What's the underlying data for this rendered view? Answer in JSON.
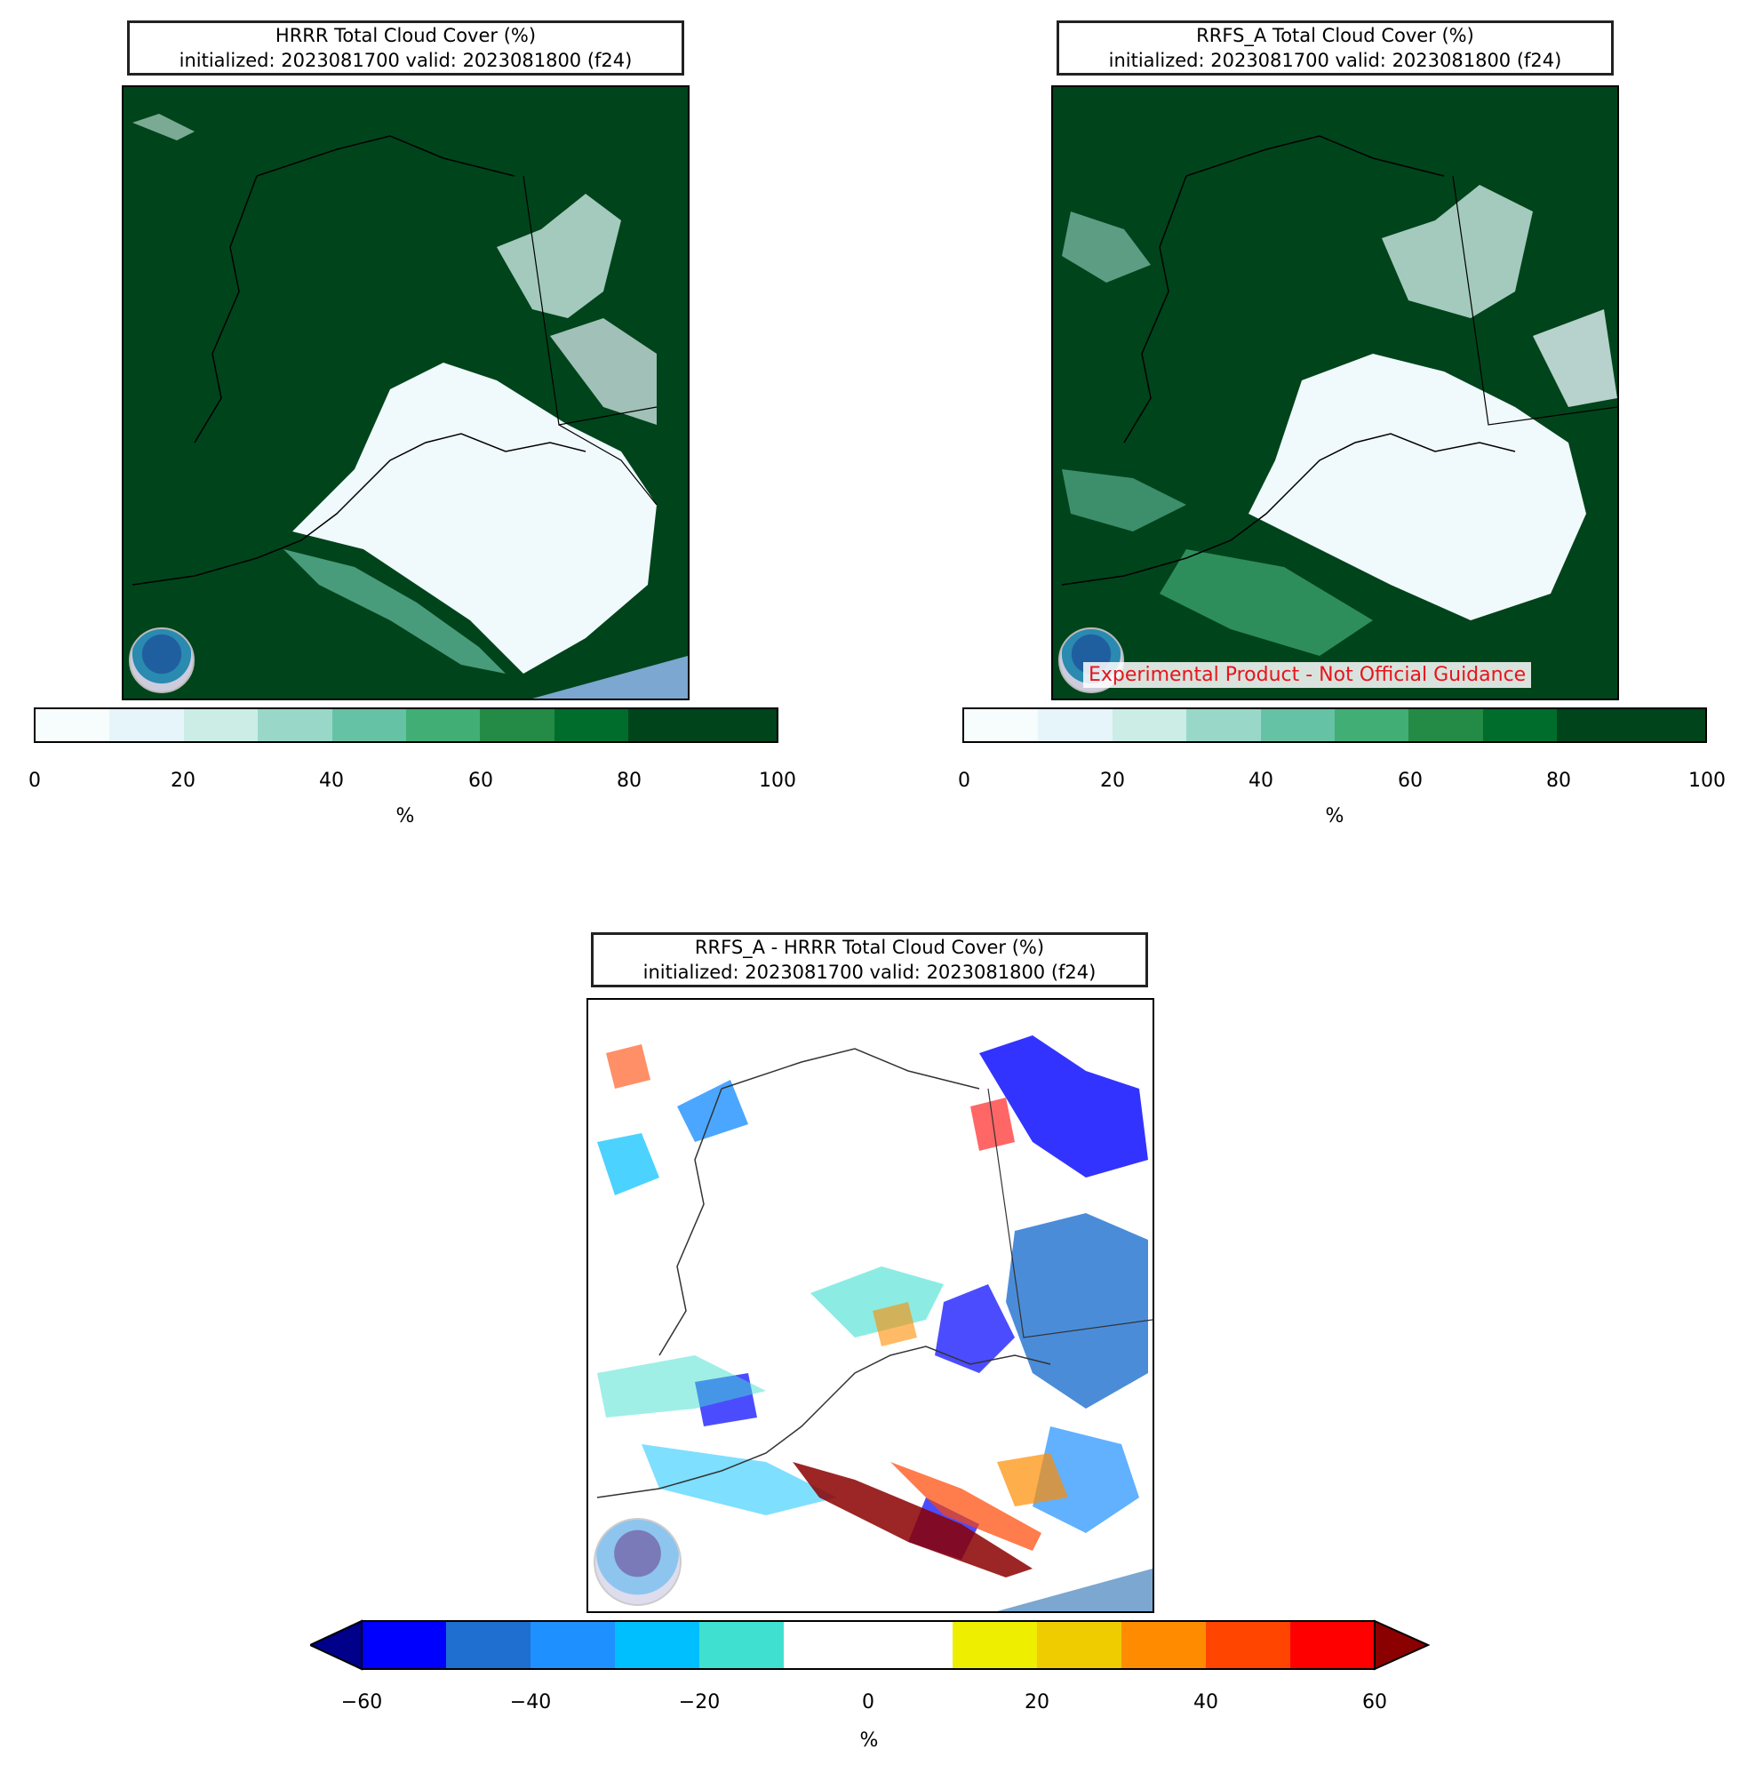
{
  "panels": {
    "hrrr": {
      "title_line1": "HRRR Total Cloud Cover (%)",
      "title_line2": "initialized: 2023081700 valid: 2023081800 (f24)",
      "logo": "noaa-logo",
      "colorbar": {
        "ticks": [
          "0",
          "20",
          "40",
          "60",
          "80",
          "100"
        ],
        "unit": "%"
      }
    },
    "rrfs": {
      "title_line1": "RRFS_A Total Cloud Cover (%)",
      "title_line2": "initialized: 2023081700 valid: 2023081800 (f24)",
      "logo": "noaa-logo",
      "watermark": "Experimental Product - Not Official Guidance",
      "colorbar": {
        "ticks": [
          "0",
          "20",
          "40",
          "60",
          "80",
          "100"
        ],
        "unit": "%"
      }
    },
    "diff": {
      "title_line1": "RRFS_A - HRRR Total Cloud Cover (%)",
      "title_line2": "initialized: 2023081700 valid: 2023081800 (f24)",
      "logo": "noaa-logo",
      "colorbar": {
        "ticks": [
          "−60",
          "−40",
          "−20",
          "0",
          "20",
          "40",
          "60"
        ],
        "unit": "%"
      }
    }
  },
  "colors": {
    "green_scale": [
      "#f7fcfd",
      "#e5f5f9",
      "#ccece6",
      "#99d8c9",
      "#66c2a4",
      "#41ae76",
      "#238b45",
      "#006d2c",
      "#00441b"
    ],
    "diff_scale": [
      "#00008b",
      "#0000ff",
      "#1e6fd0",
      "#1e90ff",
      "#00bfff",
      "#40e0d0",
      "#ffffff",
      "#ffffff",
      "#eeee00",
      "#eecc00",
      "#ff8c00",
      "#ff4500",
      "#ff0000",
      "#8b0000"
    ],
    "land_dark": "#00441b",
    "ocean_corner": "#7ba7d0"
  }
}
